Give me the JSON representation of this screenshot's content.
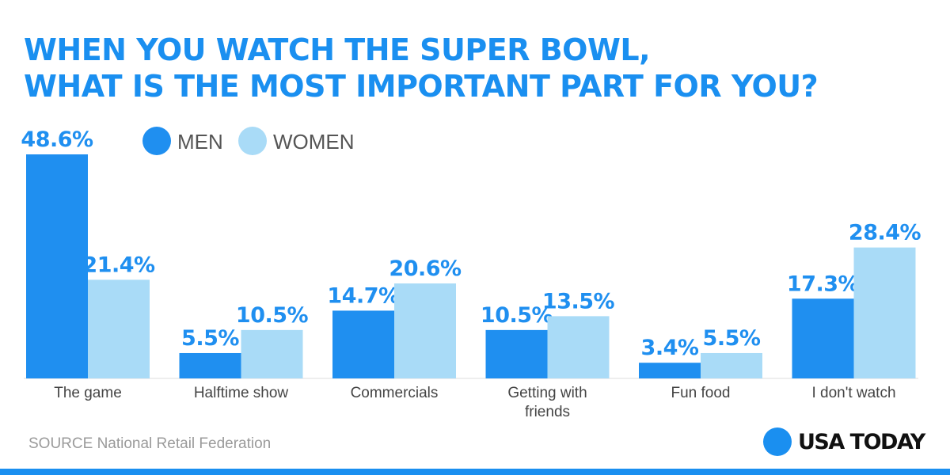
{
  "colors": {
    "title": "#1a8ff0",
    "men": "#1f8ff0",
    "women": "#a9dbf7",
    "label": "#1f8ff0",
    "category": "#444444",
    "baseline": "#dddddd",
    "brand_dot": "#1a8ff0",
    "bottom_bar": "#1a8ff0"
  },
  "header": {
    "title_line1": "WHEN YOU WATCH THE SUPER BOWL,",
    "title_line2": "WHAT IS THE MOST IMPORTANT PART FOR YOU?"
  },
  "legend": {
    "men": "MEN",
    "women": "WOMEN"
  },
  "footer": {
    "source": "SOURCE National Retail Federation",
    "brand": "USA TODAY"
  },
  "chart_data": {
    "type": "bar",
    "title": "WHEN YOU WATCH THE SUPER BOWL, WHAT IS THE MOST IMPORTANT PART FOR YOU?",
    "xlabel": "",
    "ylabel": "",
    "ylim": [
      0,
      50
    ],
    "grid": false,
    "legend_position": "top-left",
    "categories": [
      [
        "The game"
      ],
      [
        "Halftime show"
      ],
      [
        "Commercials"
      ],
      [
        "Getting with",
        "friends"
      ],
      [
        "Fun food"
      ],
      [
        "I don't watch"
      ]
    ],
    "series": [
      {
        "name": "MEN",
        "values": [
          48.6,
          5.5,
          14.7,
          10.5,
          3.4,
          17.3
        ],
        "labels": [
          "48.6%",
          "5.5%",
          "14.7%",
          "10.5%",
          "3.4%",
          "17.3%"
        ]
      },
      {
        "name": "WOMEN",
        "values": [
          21.4,
          10.5,
          20.6,
          13.5,
          5.5,
          28.4
        ],
        "labels": [
          "21.4%",
          "10.5%",
          "20.6%",
          "13.5%",
          "5.5%",
          "28.4%"
        ]
      }
    ]
  }
}
